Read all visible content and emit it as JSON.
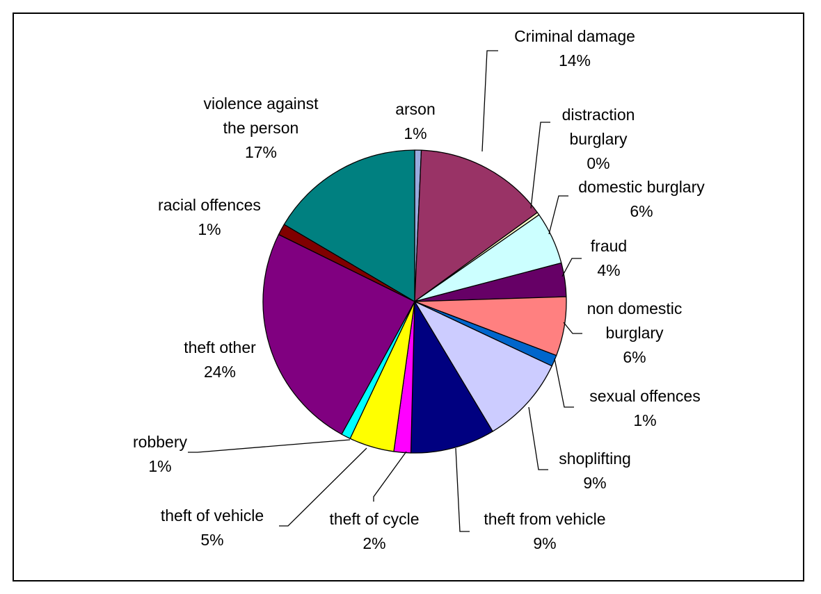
{
  "chart_data": {
    "type": "pie",
    "start_angle_deg": 0,
    "direction": "clockwise",
    "slices": [
      {
        "label": "arson",
        "value": 0.7,
        "percent_label": "1%",
        "color": "#99AADD"
      },
      {
        "label": "Criminal damage",
        "value": 14.3,
        "percent_label": "14%",
        "color": "#993366"
      },
      {
        "label": "distraction burglary",
        "value": 0.3,
        "percent_label": "0%",
        "color": "#FFFFCC"
      },
      {
        "label": "domestic burglary",
        "value": 5.6,
        "percent_label": "6%",
        "color": "#CCFFFF"
      },
      {
        "label": "fraud",
        "value": 3.6,
        "percent_label": "4%",
        "color": "#660066"
      },
      {
        "label": "non domestic burglary",
        "value": 6.3,
        "percent_label": "6%",
        "color": "#FF8080"
      },
      {
        "label": "sexual offences",
        "value": 1.2,
        "percent_label": "1%",
        "color": "#0066CC"
      },
      {
        "label": "shoplifting",
        "value": 9.4,
        "percent_label": "9%",
        "color": "#CCCCFF"
      },
      {
        "label": "theft from vehicle",
        "value": 9.0,
        "percent_label": "9%",
        "color": "#000080"
      },
      {
        "label": "theft of cycle",
        "value": 1.8,
        "percent_label": "2%",
        "color": "#FF00FF"
      },
      {
        "label": "theft of vehicle",
        "value": 4.8,
        "percent_label": "5%",
        "color": "#FFFF00"
      },
      {
        "label": "robbery",
        "value": 1.0,
        "percent_label": "1%",
        "color": "#00FFFF"
      },
      {
        "label": "theft other",
        "value": 24.3,
        "percent_label": "24%",
        "color": "#800080"
      },
      {
        "label": "racial offences",
        "value": 1.2,
        "percent_label": "1%",
        "color": "#800000"
      },
      {
        "label": "violence against the person",
        "value": 16.5,
        "percent_label": "17%",
        "color": "#008080"
      }
    ]
  }
}
